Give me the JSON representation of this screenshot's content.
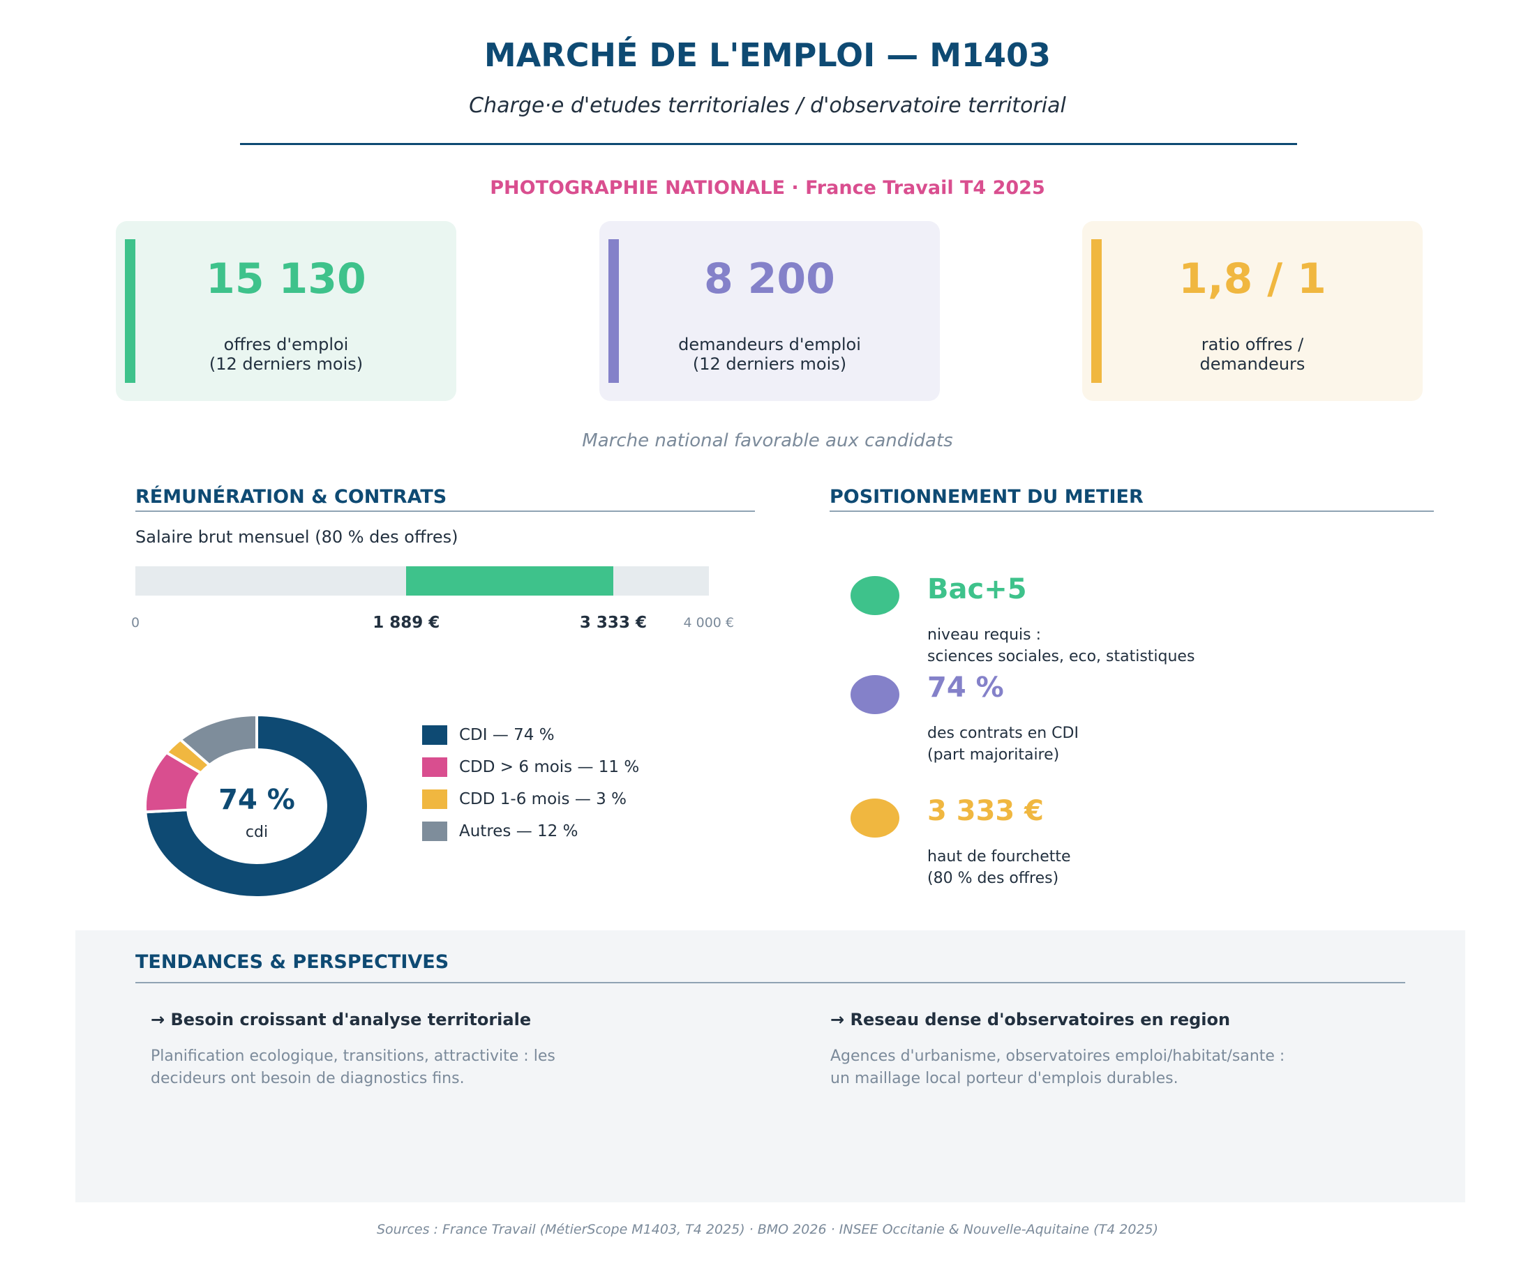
{
  "header": {
    "title": "MARCHÉ DE L'EMPLOI — M1403",
    "subtitle": "Charge·e d'etudes territoriales / d'observatoire territorial",
    "section_tag": "PHOTOGRAPHIE NATIONALE  ·  France Travail T4 2025"
  },
  "kpis": [
    {
      "value": "15 130",
      "label_line1": "offres d'emploi",
      "label_line2": "(12 derniers mois)",
      "color": "#3ec28b",
      "bg": "#eaf6f1"
    },
    {
      "value": "8 200",
      "label_line1": "demandeurs d'emploi",
      "label_line2": "(12 derniers mois)",
      "color": "#8481c9",
      "bg": "#f0f0f8"
    },
    {
      "value": "1,8 / 1",
      "label_line1": "ratio offres /",
      "label_line2": "demandeurs",
      "color": "#f0b740",
      "bg": "#fcf6ea"
    }
  ],
  "kpi_note": "Marche national favorable aux candidats",
  "remuneration": {
    "heading": "RÉMUNÉRATION & CONTRATS",
    "salary_label": "Salaire brut mensuel (80 % des offres)",
    "axis_min_label": "0",
    "low_label": "1 889 €",
    "high_label": "3 333 €",
    "axis_max_label": "4 000 €"
  },
  "positionnement": {
    "heading": "POSITIONNEMENT DU METIER",
    "items": [
      {
        "value": "Bac+5",
        "line1": "niveau requis :",
        "line2": "sciences sociales, eco, statistiques",
        "color": "#3ec28b"
      },
      {
        "value": "74 %",
        "line1": "des contrats en CDI",
        "line2": "(part majoritaire)",
        "color": "#8481c9"
      },
      {
        "value": "3 333 €",
        "line1": "haut de fourchette",
        "line2": "(80 % des offres)",
        "color": "#f0b740"
      }
    ]
  },
  "trends": {
    "heading": "TENDANCES & PERSPECTIVES",
    "items": [
      {
        "title": "→ Besoin croissant d'analyse territoriale",
        "line1": "Planification ecologique, transitions, attractivite : les",
        "line2": "decideurs ont besoin de diagnostics fins."
      },
      {
        "title": "→ Reseau dense d'observatoires en region",
        "line1": "Agences d'urbanisme, observatoires emploi/habitat/sante :",
        "line2": "un maillage local porteur d'emplois durables."
      }
    ]
  },
  "sources": "Sources : France Travail (MétierScope M1403, T4 2025) · BMO 2026 · INSEE Occitanie & Nouvelle-Aquitaine (T4 2025)",
  "chart_data": [
    {
      "type": "range-bar",
      "title": "Salaire brut mensuel (80 % des offres)",
      "xlim": [
        0,
        4000
      ],
      "low": 1889,
      "high": 3333,
      "colors": {
        "fill": "#3ec28b",
        "track": "#e6ebee"
      }
    },
    {
      "type": "pie",
      "variant": "donut",
      "center_value": "74 %",
      "center_label": "cdi",
      "slices": [
        {
          "name": "CDI",
          "value": 74,
          "legend": "CDI — 74 %",
          "color": "#0e4a73"
        },
        {
          "name": "CDD > 6 mois",
          "value": 11,
          "legend": "CDD > 6 mois — 11 %",
          "color": "#d94e8f"
        },
        {
          "name": "CDD 1-6 mois",
          "value": 3,
          "legend": "CDD 1-6 mois — 3 %",
          "color": "#f0b740"
        },
        {
          "name": "Autres",
          "value": 12,
          "legend": "Autres — 12 %",
          "color": "#7e8d9b"
        }
      ]
    }
  ]
}
